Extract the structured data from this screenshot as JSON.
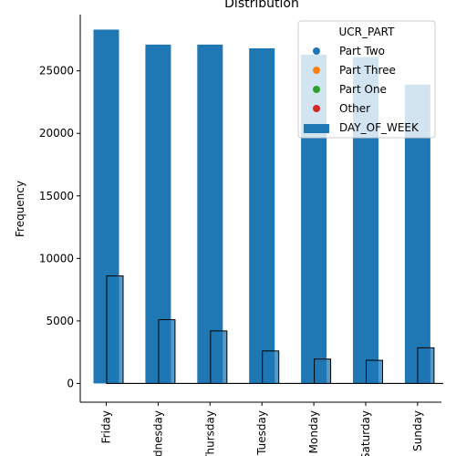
{
  "chart_data": {
    "type": "bar",
    "title": "Distribution",
    "ylabel": "Frequency",
    "xlabel": "",
    "categories": [
      "Friday",
      "Wednesday",
      "Thursday",
      "Tuesday",
      "Monday",
      "Saturday",
      "Sunday"
    ],
    "ylim": [
      -1500,
      29500
    ],
    "yticks": [
      0,
      5000,
      10000,
      15000,
      20000,
      25000
    ],
    "ytick_labels": [
      "0",
      "5000",
      "10000",
      "15000",
      "20000",
      "25000"
    ],
    "grid": false,
    "series": [
      {
        "name": "DAY_OF_WEEK",
        "kind": "bar",
        "color": "#1f77b4",
        "values": [
          28300,
          27100,
          27100,
          26800,
          26300,
          26100,
          23900
        ]
      },
      {
        "name": "",
        "kind": "histogram",
        "color": "#1f77b4",
        "values": [
          8600,
          5100,
          4200,
          2600,
          1950,
          1850,
          2850
        ]
      }
    ],
    "legend": {
      "title": "UCR_PART",
      "placement": "top-right",
      "entries": [
        {
          "label": "Part Two",
          "marker": "dot",
          "color": "#1f77b4"
        },
        {
          "label": "Part Three",
          "marker": "dot",
          "color": "#ff7f0e"
        },
        {
          "label": "Part One",
          "marker": "dot",
          "color": "#2ca02c"
        },
        {
          "label": "Other",
          "marker": "dot",
          "color": "#d62728"
        },
        {
          "label": "DAY_OF_WEEK",
          "marker": "bar",
          "color": "#1f77b4"
        }
      ]
    }
  }
}
